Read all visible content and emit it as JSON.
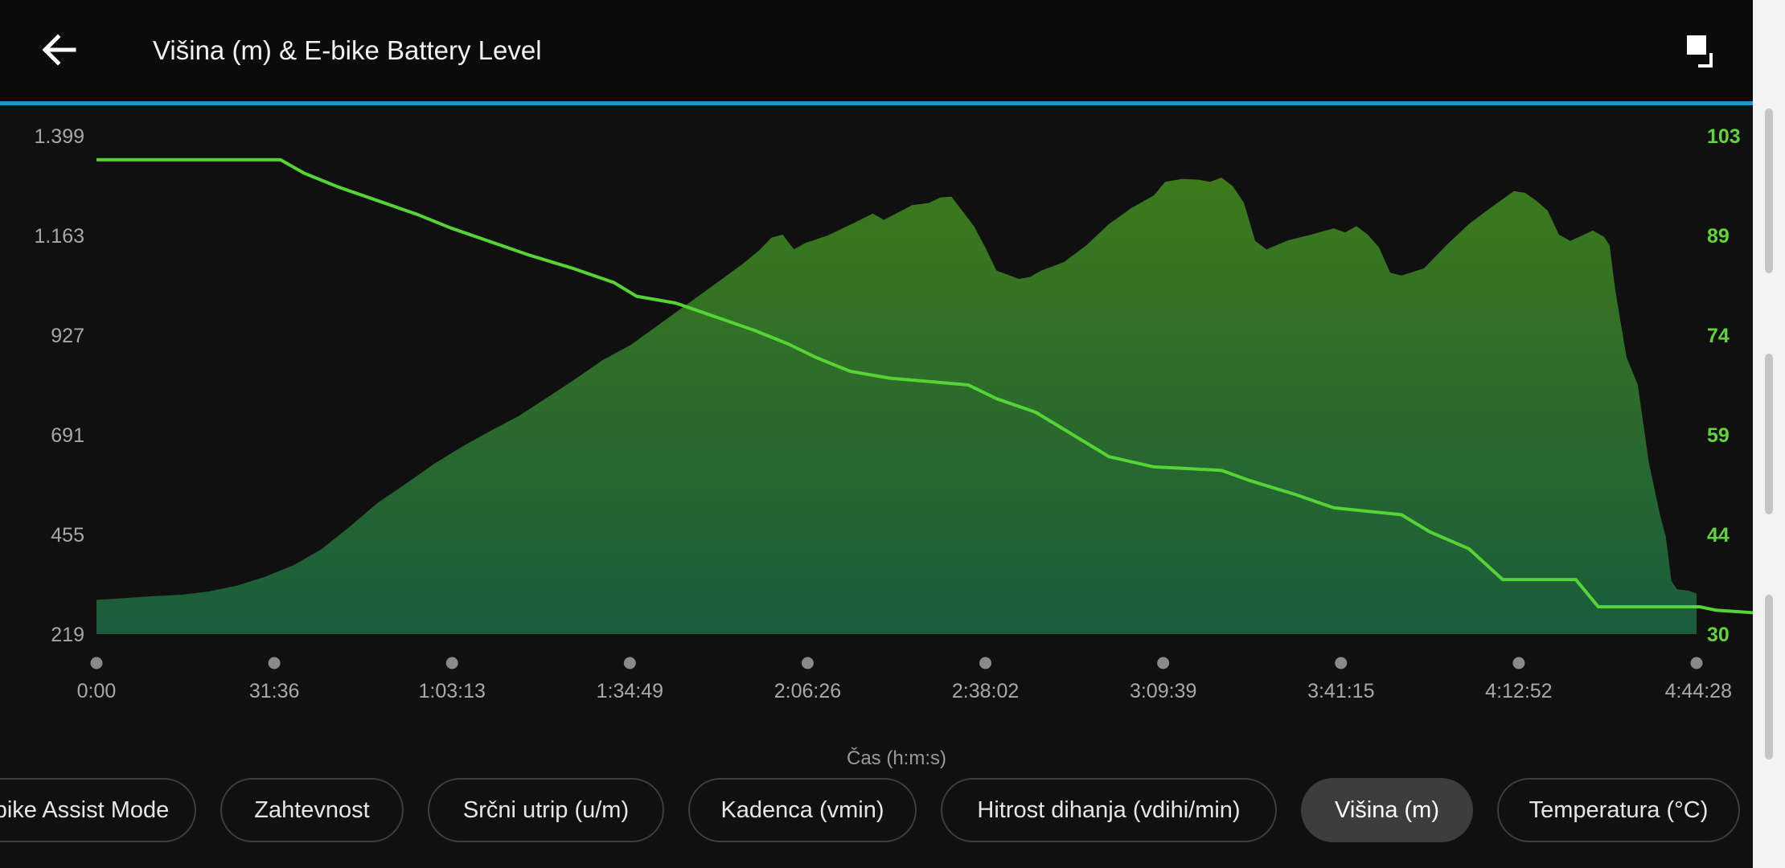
{
  "header": {
    "title": "Višina (m) & E-bike Battery Level",
    "back_icon": "arrow-left-icon",
    "expand_icon": "expand-icon"
  },
  "colors": {
    "accent": "#1c93d2",
    "battery_line": "#55d435",
    "area_top": "#3c7a1c",
    "area_bottom": "#1b5c3c",
    "right_axis_text": "#63d33d"
  },
  "chart_data": {
    "type": "area",
    "xlabel": "Čas (h:m:s)",
    "x_ticks": [
      "0:00",
      "31:36",
      "1:03:13",
      "1:34:49",
      "2:06:26",
      "2:38:02",
      "3:09:39",
      "3:41:15",
      "4:12:52",
      "4:44:28"
    ],
    "x_range_minutes": [
      0,
      284.47
    ],
    "left_axis": {
      "ticks": [
        "1.399",
        "1.163",
        "927",
        "691",
        "455",
        "219"
      ],
      "ylim": [
        219,
        1399
      ]
    },
    "right_axis": {
      "ticks": [
        "103",
        "89",
        "74",
        "59",
        "44",
        "30"
      ],
      "ylim": [
        30,
        103
      ]
    },
    "series": [
      {
        "name": "Višina (m)",
        "kind": "area",
        "axis": "left",
        "points": [
          [
            0,
            300
          ],
          [
            5,
            304
          ],
          [
            10,
            309
          ],
          [
            15,
            312
          ],
          [
            20,
            320
          ],
          [
            25,
            334
          ],
          [
            30,
            355
          ],
          [
            35,
            382
          ],
          [
            40,
            420
          ],
          [
            45,
            473
          ],
          [
            50,
            530
          ],
          [
            55,
            575
          ],
          [
            60,
            622
          ],
          [
            65,
            663
          ],
          [
            70,
            700
          ],
          [
            75,
            735
          ],
          [
            80,
            778
          ],
          [
            85,
            822
          ],
          [
            90,
            868
          ],
          [
            95,
            904
          ],
          [
            100,
            952
          ],
          [
            105,
            1000
          ],
          [
            110,
            1048
          ],
          [
            115,
            1097
          ],
          [
            118,
            1130
          ],
          [
            120,
            1158
          ],
          [
            122,
            1165
          ],
          [
            124,
            1130
          ],
          [
            126,
            1145
          ],
          [
            130,
            1163
          ],
          [
            135,
            1195
          ],
          [
            138,
            1215
          ],
          [
            140,
            1200
          ],
          [
            145,
            1235
          ],
          [
            148,
            1240
          ],
          [
            150,
            1253
          ],
          [
            152,
            1255
          ],
          [
            154,
            1220
          ],
          [
            156,
            1185
          ],
          [
            158,
            1135
          ],
          [
            160,
            1080
          ],
          [
            162,
            1070
          ],
          [
            164,
            1060
          ],
          [
            166,
            1065
          ],
          [
            168,
            1080
          ],
          [
            172,
            1100
          ],
          [
            176,
            1140
          ],
          [
            180,
            1190
          ],
          [
            184,
            1228
          ],
          [
            188,
            1258
          ],
          [
            190,
            1290
          ],
          [
            193,
            1297
          ],
          [
            196,
            1295
          ],
          [
            198,
            1290
          ],
          [
            200,
            1300
          ],
          [
            202,
            1280
          ],
          [
            204,
            1240
          ],
          [
            206,
            1150
          ],
          [
            208,
            1130
          ],
          [
            212,
            1152
          ],
          [
            216,
            1165
          ],
          [
            220,
            1180
          ],
          [
            222,
            1170
          ],
          [
            224,
            1185
          ],
          [
            226,
            1165
          ],
          [
            228,
            1135
          ],
          [
            230,
            1075
          ],
          [
            232,
            1068
          ],
          [
            236,
            1085
          ],
          [
            240,
            1140
          ],
          [
            244,
            1190
          ],
          [
            248,
            1230
          ],
          [
            252,
            1268
          ],
          [
            254,
            1264
          ],
          [
            256,
            1245
          ],
          [
            258,
            1222
          ],
          [
            260,
            1165
          ],
          [
            262,
            1150
          ],
          [
            264,
            1162
          ],
          [
            266,
            1175
          ],
          [
            268,
            1160
          ],
          [
            269,
            1140
          ],
          [
            270,
            1035
          ],
          [
            272,
            875
          ],
          [
            274,
            810
          ],
          [
            276,
            625
          ],
          [
            278,
            500
          ],
          [
            279,
            450
          ],
          [
            280,
            345
          ],
          [
            281,
            325
          ],
          [
            283,
            322
          ],
          [
            284.47,
            315
          ]
        ]
      },
      {
        "name": "E-bike Battery Level",
        "kind": "line",
        "axis": "right",
        "points": [
          [
            0,
            99.5
          ],
          [
            32.7,
            99.5
          ],
          [
            37,
            97.5
          ],
          [
            43,
            95.5
          ],
          [
            50,
            93.5
          ],
          [
            57,
            91.5
          ],
          [
            63,
            89.5
          ],
          [
            70,
            87.5
          ],
          [
            77,
            85.5
          ],
          [
            85,
            83.5
          ],
          [
            92,
            81.5
          ],
          [
            96,
            79.5
          ],
          [
            103,
            78.5
          ],
          [
            110,
            76.5
          ],
          [
            117,
            74.5
          ],
          [
            123,
            72.5
          ],
          [
            128,
            70.5
          ],
          [
            134,
            68.5
          ],
          [
            141,
            67.5
          ],
          [
            155,
            66.5
          ],
          [
            160,
            64.5
          ],
          [
            167,
            62.5
          ],
          [
            174,
            59.0
          ],
          [
            180,
            56.0
          ],
          [
            188,
            54.5
          ],
          [
            200,
            54.0
          ],
          [
            205,
            52.5
          ],
          [
            213,
            50.5
          ],
          [
            220,
            48.5
          ],
          [
            232,
            47.5
          ],
          [
            237,
            45.0
          ],
          [
            244,
            42.5
          ],
          [
            250,
            38.0
          ],
          [
            263,
            38.0
          ],
          [
            267,
            34.0
          ],
          [
            285,
            34.0
          ],
          [
            288,
            33.5
          ],
          [
            297,
            33.0
          ]
        ]
      }
    ],
    "grid": false,
    "legend": "none"
  },
  "chips": [
    {
      "label": "E-bike Assist Mode",
      "active": false
    },
    {
      "label": "Zahtevnost",
      "active": false
    },
    {
      "label": "Srčni utrip (u/m)",
      "active": false
    },
    {
      "label": "Kadenca (vmin)",
      "active": false
    },
    {
      "label": "Hitrost dihanja (vdihi/min)",
      "active": false
    },
    {
      "label": "Višina (m)",
      "active": true
    },
    {
      "label": "Temperatura (°C)",
      "active": false
    }
  ]
}
